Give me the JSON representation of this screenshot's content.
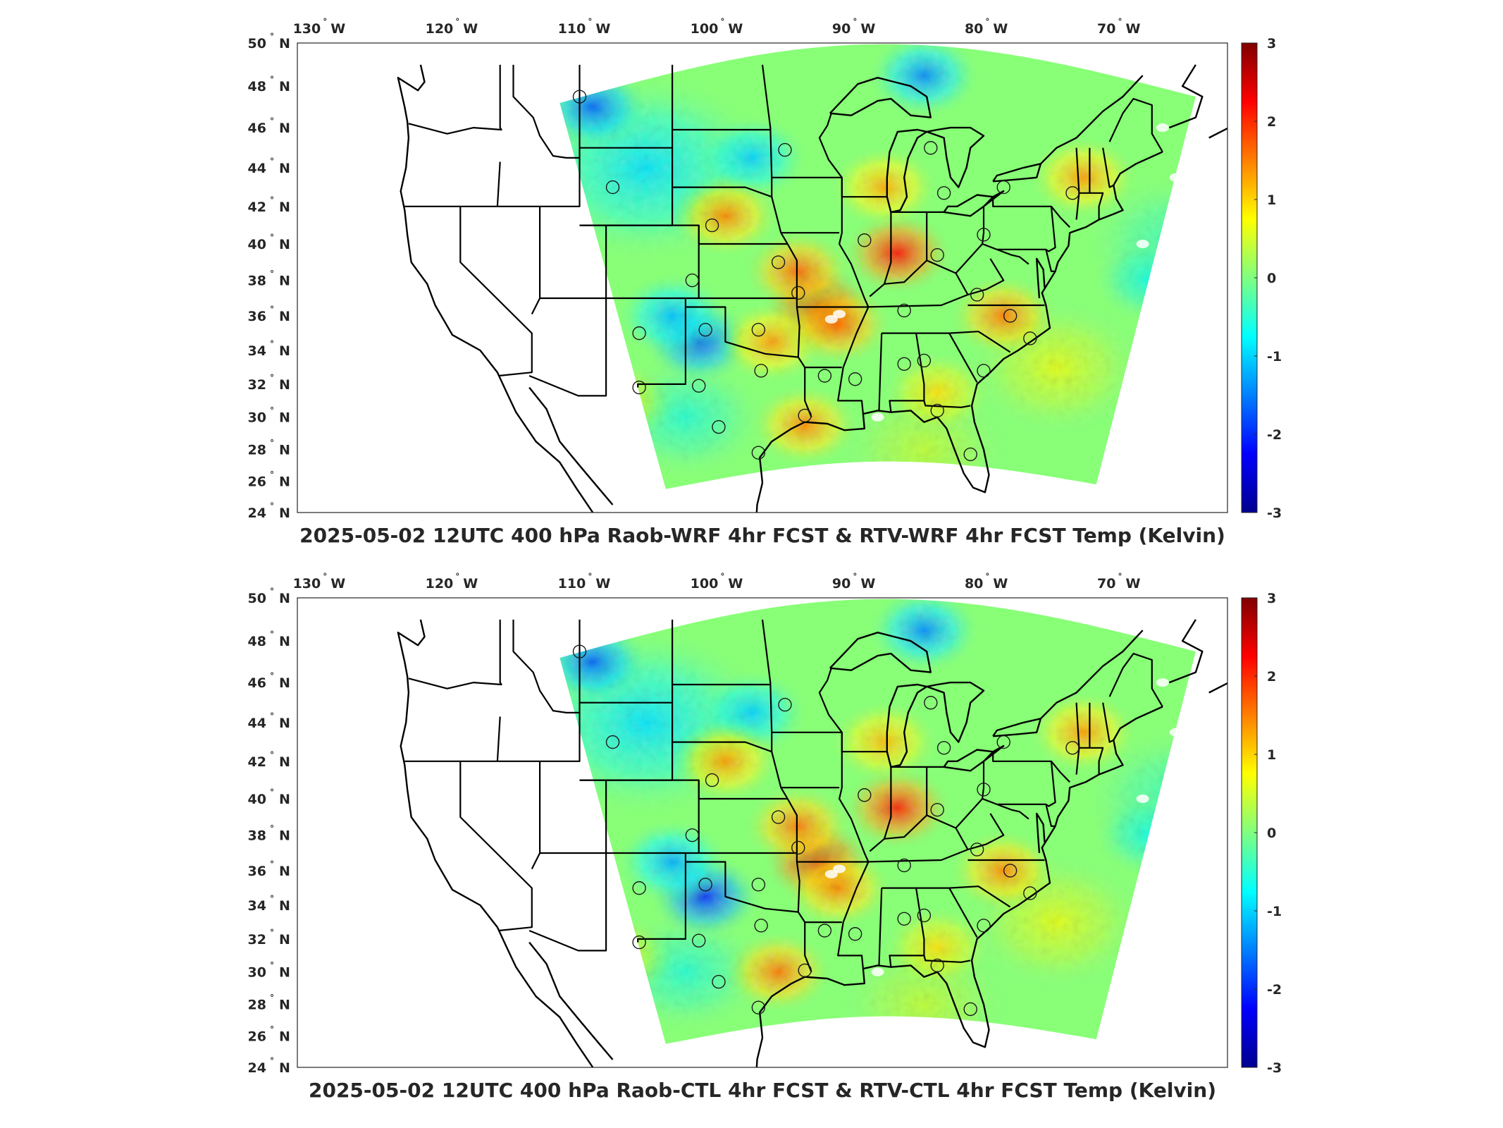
{
  "colorbar": {
    "ticks": [
      "3",
      "2",
      "1",
      "0",
      "-1",
      "-2",
      "-3"
    ],
    "values": [
      3,
      2,
      1,
      0,
      -1,
      -2,
      -3
    ],
    "colormap": "jet",
    "vmin": -3,
    "vmax": 3
  },
  "panels": [
    {
      "title": "2025-05-02 12UTC 400 hPa Raob-WRF 4hr FCST & RTV-WRF 4hr FCST Temp (Kelvin)",
      "lon_ticks": [
        "130",
        "120",
        "110",
        "100",
        "90",
        "80",
        "70"
      ],
      "lon_suffix": "W",
      "lat_ticks": [
        "50",
        "48",
        "46",
        "44",
        "42",
        "40",
        "38",
        "36",
        "34",
        "32",
        "30",
        "28",
        "26",
        "24"
      ],
      "lat_suffix": "N",
      "hotspots": [
        {
          "lon": -93.0,
          "lat": 36.5,
          "v": 2.4
        },
        {
          "lon": -94.5,
          "lat": 38.5,
          "v": 1.6
        },
        {
          "lon": -87.0,
          "lat": 39.5,
          "v": 2.1
        },
        {
          "lon": -96.5,
          "lat": 34.5,
          "v": 1.3
        },
        {
          "lon": -100.0,
          "lat": 41.5,
          "v": 1.4
        },
        {
          "lon": -79.0,
          "lat": 36.0,
          "v": 1.5
        },
        {
          "lon": -73.0,
          "lat": 43.5,
          "v": 1.3
        },
        {
          "lon": -88.0,
          "lat": 43.0,
          "v": 1.2
        },
        {
          "lon": -94.0,
          "lat": 29.5,
          "v": 1.4
        },
        {
          "lon": -84.0,
          "lat": 31.5,
          "v": 0.9
        },
        {
          "lon": -108.0,
          "lat": 31.0,
          "v": 0.6
        },
        {
          "lon": -91.5,
          "lat": 35.5,
          "v": 1.6
        }
      ],
      "coldspots": [
        {
          "lon": -110.0,
          "lat": 47.0,
          "v": -1.6
        },
        {
          "lon": -102.0,
          "lat": 34.5,
          "v": -1.7
        },
        {
          "lon": -104.0,
          "lat": 36.0,
          "v": -1.1
        },
        {
          "lon": -85.0,
          "lat": 48.5,
          "v": -1.4
        },
        {
          "lon": -98.0,
          "lat": 44.5,
          "v": -1.0
        },
        {
          "lon": -68.0,
          "lat": 38.0,
          "v": -0.6
        }
      ],
      "stations": [
        [
          -111.0,
          47.5
        ],
        [
          -108.5,
          43.0
        ],
        [
          -95.5,
          44.9
        ],
        [
          -84.5,
          45.0
        ],
        [
          -83.5,
          42.7
        ],
        [
          -79.0,
          43.0
        ],
        [
          -73.8,
          42.7
        ],
        [
          -101.0,
          41.0
        ],
        [
          -89.5,
          40.2
        ],
        [
          -84.0,
          39.4
        ],
        [
          -80.5,
          40.5
        ],
        [
          -96.0,
          39.0
        ],
        [
          -102.5,
          38.0
        ],
        [
          -94.5,
          37.3
        ],
        [
          -86.5,
          36.3
        ],
        [
          -81.0,
          37.2
        ],
        [
          -78.5,
          36.0
        ],
        [
          -106.5,
          35.0
        ],
        [
          -101.5,
          35.2
        ],
        [
          -97.5,
          35.2
        ],
        [
          -77.0,
          34.7
        ],
        [
          -97.3,
          32.8
        ],
        [
          -92.5,
          32.5
        ],
        [
          -90.2,
          32.3
        ],
        [
          -86.5,
          33.2
        ],
        [
          -85.0,
          33.4
        ],
        [
          -80.5,
          32.8
        ],
        [
          -106.5,
          31.8
        ],
        [
          -102.0,
          31.9
        ],
        [
          -94.0,
          30.1
        ],
        [
          -84.0,
          30.4
        ],
        [
          -100.5,
          29.4
        ],
        [
          -97.5,
          27.8
        ],
        [
          -81.5,
          27.7
        ]
      ]
    },
    {
      "title": "2025-05-02 12UTC 400 hPa Raob-CTL 4hr FCST & RTV-CTL 4hr FCST Temp (Kelvin)",
      "lon_ticks": [
        "130",
        "120",
        "110",
        "100",
        "90",
        "80",
        "70"
      ],
      "lon_suffix": "W",
      "lat_ticks": [
        "50",
        "48",
        "46",
        "44",
        "42",
        "40",
        "38",
        "36",
        "34",
        "32",
        "30",
        "28",
        "26",
        "24"
      ],
      "lat_suffix": "N",
      "hotspots": [
        {
          "lon": -93.0,
          "lat": 36.5,
          "v": 2.3
        },
        {
          "lon": -94.5,
          "lat": 38.5,
          "v": 1.5
        },
        {
          "lon": -87.0,
          "lat": 39.5,
          "v": 2.0
        },
        {
          "lon": -96.0,
          "lat": 30.0,
          "v": 1.5
        },
        {
          "lon": -100.0,
          "lat": 42.0,
          "v": 1.3
        },
        {
          "lon": -79.0,
          "lat": 36.0,
          "v": 1.4
        },
        {
          "lon": -73.0,
          "lat": 43.5,
          "v": 1.3
        },
        {
          "lon": -88.0,
          "lat": 43.0,
          "v": 1.1
        },
        {
          "lon": -84.0,
          "lat": 31.5,
          "v": 0.9
        },
        {
          "lon": -108.0,
          "lat": 31.0,
          "v": 0.6
        },
        {
          "lon": -91.5,
          "lat": 35.0,
          "v": 1.4
        }
      ],
      "coldspots": [
        {
          "lon": -110.0,
          "lat": 47.0,
          "v": -1.6
        },
        {
          "lon": -101.5,
          "lat": 34.5,
          "v": -1.9
        },
        {
          "lon": -104.0,
          "lat": 36.5,
          "v": -1.2
        },
        {
          "lon": -85.0,
          "lat": 48.5,
          "v": -1.4
        },
        {
          "lon": -98.0,
          "lat": 44.5,
          "v": -1.0
        },
        {
          "lon": -68.0,
          "lat": 38.0,
          "v": -0.6
        }
      ],
      "stations": [
        [
          -111.0,
          47.5
        ],
        [
          -108.5,
          43.0
        ],
        [
          -95.5,
          44.9
        ],
        [
          -84.5,
          45.0
        ],
        [
          -83.5,
          42.7
        ],
        [
          -79.0,
          43.0
        ],
        [
          -73.8,
          42.7
        ],
        [
          -101.0,
          41.0
        ],
        [
          -89.5,
          40.2
        ],
        [
          -84.0,
          39.4
        ],
        [
          -80.5,
          40.5
        ],
        [
          -96.0,
          39.0
        ],
        [
          -102.5,
          38.0
        ],
        [
          -94.5,
          37.3
        ],
        [
          -86.5,
          36.3
        ],
        [
          -81.0,
          37.2
        ],
        [
          -78.5,
          36.0
        ],
        [
          -106.5,
          35.0
        ],
        [
          -101.5,
          35.2
        ],
        [
          -97.5,
          35.2
        ],
        [
          -77.0,
          34.7
        ],
        [
          -97.3,
          32.8
        ],
        [
          -92.5,
          32.5
        ],
        [
          -90.2,
          32.3
        ],
        [
          -86.5,
          33.2
        ],
        [
          -85.0,
          33.4
        ],
        [
          -80.5,
          32.8
        ],
        [
          -106.5,
          31.8
        ],
        [
          -102.0,
          31.9
        ],
        [
          -94.0,
          30.1
        ],
        [
          -84.0,
          30.4
        ],
        [
          -100.5,
          29.4
        ],
        [
          -97.5,
          27.8
        ],
        [
          -81.5,
          27.7
        ]
      ]
    }
  ]
}
